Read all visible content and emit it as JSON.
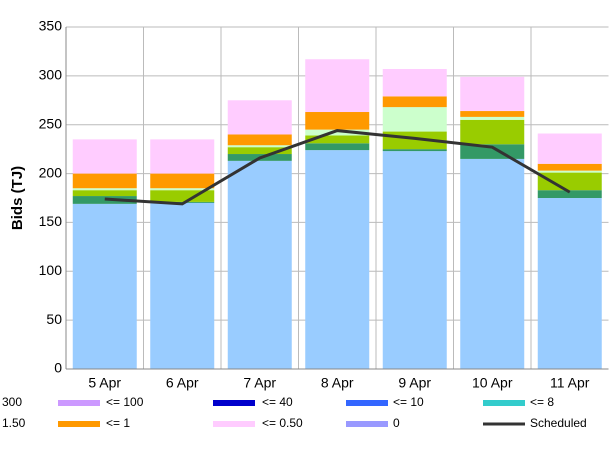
{
  "chart_data": {
    "type": "bar",
    "stacked": true,
    "y_label": "Bids (TJ)",
    "categories": [
      "5 Apr",
      "6 Apr",
      "7 Apr",
      "8 Apr",
      "9 Apr",
      "10 Apr",
      "11 Apr"
    ],
    "ylim": [
      0,
      350
    ],
    "yticks": [
      0,
      50,
      100,
      150,
      200,
      250,
      300,
      350
    ],
    "grid": true,
    "series": [
      {
        "color": "#99ccff",
        "values": [
          169,
          170,
          213,
          224,
          223,
          215,
          175
        ]
      },
      {
        "color": "#339966",
        "values": [
          8,
          1,
          7,
          7,
          2,
          15,
          8
        ]
      },
      {
        "color": "#99cc00",
        "values": [
          6,
          12,
          7,
          8,
          18,
          25,
          18
        ]
      },
      {
        "color": "#ccffcc",
        "values": [
          2,
          2,
          2,
          6,
          25,
          3,
          2
        ]
      },
      {
        "name": "<= 1",
        "color": "#ff9900",
        "values": [
          15,
          15,
          11,
          18,
          11,
          6,
          7
        ]
      },
      {
        "name": "<= 0.50",
        "color": "#ffccff",
        "values": [
          35,
          35,
          35,
          54,
          28,
          35,
          31
        ]
      },
      {
        "name": "300",
        "values": [
          0,
          0,
          0,
          0,
          0,
          0,
          0
        ]
      },
      {
        "name": "1.50",
        "values": [
          0,
          0,
          0,
          0,
          0,
          0,
          0
        ]
      },
      {
        "name": "<= 100",
        "color": "#cc99ff",
        "values": [
          0,
          0,
          0,
          0,
          0,
          0,
          0
        ]
      },
      {
        "name": "<= 40",
        "color": "#0000cc",
        "values": [
          0,
          0,
          0,
          0,
          0,
          0,
          0
        ]
      },
      {
        "name": "<= 10",
        "color": "#3366ff",
        "values": [
          0,
          0,
          0,
          0,
          0,
          0,
          0
        ]
      },
      {
        "name": "<= 8",
        "color": "#33cccc",
        "values": [
          0,
          0,
          0,
          0,
          0,
          0,
          0
        ]
      },
      {
        "name": "0",
        "color": "#9999ff",
        "values": [
          0,
          0,
          0,
          0,
          0,
          0,
          0
        ]
      },
      {
        "name": "Scheduled",
        "type": "line",
        "color": "#333333",
        "values": [
          174,
          169,
          216,
          244,
          236,
          227,
          181
        ]
      }
    ]
  }
}
